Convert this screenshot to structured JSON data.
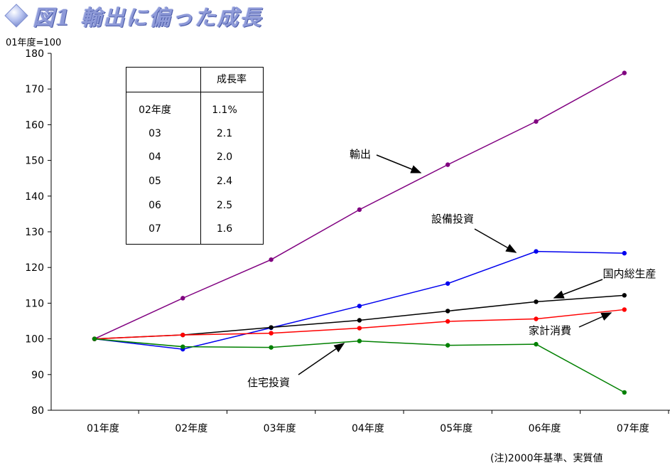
{
  "title": "図1 輸出に偏った成長",
  "icon": "diamond-icon",
  "unit_label": "01年度=100",
  "note": "(注)2000年基準、実質値",
  "growth_table": {
    "header": "成長率",
    "rows": [
      {
        "year": "02年度",
        "rate": "1.1%"
      },
      {
        "year": "03",
        "rate": "2.1"
      },
      {
        "year": "04",
        "rate": "2.0"
      },
      {
        "year": "05",
        "rate": "2.4"
      },
      {
        "year": "06",
        "rate": "2.5"
      },
      {
        "year": "07",
        "rate": "1.6"
      }
    ]
  },
  "chart_data": {
    "type": "line",
    "categories": [
      "01年度",
      "02年度",
      "03年度",
      "04年度",
      "05年度",
      "06年度",
      "07年度"
    ],
    "ylim": [
      80,
      180
    ],
    "yticks": [
      80,
      90,
      100,
      110,
      120,
      130,
      140,
      150,
      160,
      170,
      180
    ],
    "grid": false,
    "series": [
      {
        "name": "輸出",
        "color": "#800080",
        "values": [
          100,
          111.4,
          122.2,
          136.2,
          148.8,
          160.9,
          174.5
        ]
      },
      {
        "name": "設備投資",
        "color": "#0000ee",
        "values": [
          100,
          97.1,
          103.1,
          109.2,
          115.5,
          124.5,
          124.0
        ]
      },
      {
        "name": "国内総生産",
        "color": "#000000",
        "values": [
          100,
          101.1,
          103.2,
          105.2,
          107.8,
          110.4,
          112.2
        ]
      },
      {
        "name": "家計消費",
        "color": "#ff0000",
        "values": [
          100,
          101.1,
          101.6,
          103.0,
          104.9,
          105.6,
          108.2
        ]
      },
      {
        "name": "住宅投資",
        "color": "#008000",
        "values": [
          100,
          97.8,
          97.6,
          99.4,
          98.2,
          98.5,
          85.0
        ]
      }
    ]
  }
}
